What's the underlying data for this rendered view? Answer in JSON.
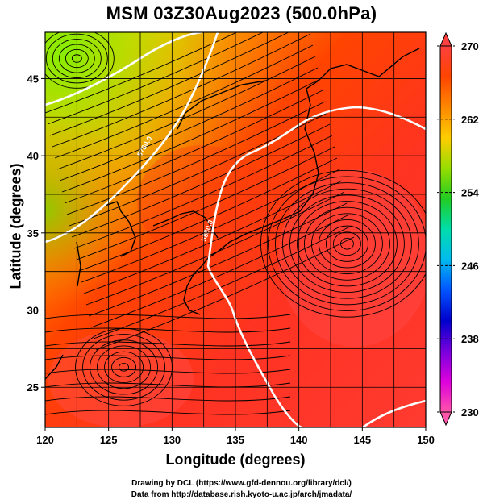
{
  "title": "MSM 03Z30Aug2023 (500.0hPa)",
  "x_axis": {
    "label": "Longitude (degrees)",
    "ticks": [
      120,
      125,
      130,
      135,
      140,
      145,
      150
    ]
  },
  "y_axis": {
    "label": "Latitude  (degrees)",
    "ticks": [
      25,
      30,
      35,
      40,
      45
    ]
  },
  "colorbar": {
    "min": 230,
    "max": 270,
    "labels": [
      270,
      262,
      254,
      246,
      238,
      230
    ],
    "colors": [
      "#ff55aa",
      "#dd00dd",
      "#7700dd",
      "#0000cc",
      "#0055ff",
      "#00bbee",
      "#00ddaa",
      "#22cc22",
      "#99dd00",
      "#ffcc00",
      "#ff8800",
      "#ff4400",
      "#ff4040"
    ]
  },
  "contour_labels": [
    "5760.0",
    "5880.0"
  ],
  "credits": {
    "line1": "Drawing by DCL (https://www.gfd-dennou.org/library/dcl/)",
    "line2": "Data from http://database.rish.kyoto-u.ac.jp/arch/jmadata/"
  }
}
